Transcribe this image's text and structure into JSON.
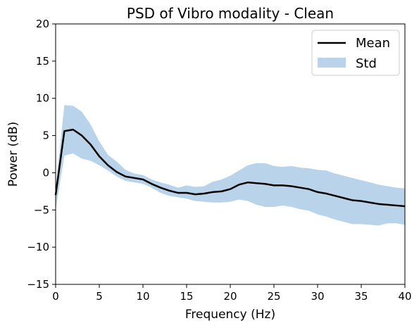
{
  "chart_data": {
    "type": "line",
    "title": "PSD of Vibro modality - Clean",
    "xlabel": "Frequency (Hz)",
    "ylabel": "Power (dB)",
    "xlim": [
      0,
      40
    ],
    "ylim": [
      -15,
      20
    ],
    "xticks": [
      0,
      5,
      10,
      15,
      20,
      25,
      30,
      35,
      40
    ],
    "yticks": [
      -15,
      -10,
      -5,
      0,
      5,
      10,
      15,
      20
    ],
    "grid": false,
    "legend": {
      "placement": "top-right",
      "entries": [
        "Mean",
        "Std"
      ]
    },
    "x": [
      0,
      1,
      2,
      3,
      4,
      5,
      6,
      7,
      8,
      9,
      10,
      11,
      12,
      13,
      14,
      15,
      16,
      17,
      18,
      19,
      20,
      21,
      22,
      23,
      24,
      25,
      26,
      27,
      28,
      29,
      30,
      31,
      32,
      33,
      34,
      35,
      36,
      37,
      38,
      39,
      40
    ],
    "series": [
      {
        "name": "Mean",
        "color": "#000000",
        "values": [
          -3.0,
          5.6,
          5.8,
          5.0,
          3.8,
          2.2,
          1.0,
          0.1,
          -0.5,
          -0.7,
          -0.9,
          -1.5,
          -2.0,
          -2.4,
          -2.7,
          -2.7,
          -2.9,
          -2.8,
          -2.6,
          -2.5,
          -2.2,
          -1.6,
          -1.3,
          -1.4,
          -1.5,
          -1.7,
          -1.7,
          -1.8,
          -2.0,
          -2.2,
          -2.6,
          -2.8,
          -3.1,
          -3.4,
          -3.7,
          -3.8,
          -4.0,
          -4.2,
          -4.3,
          -4.4,
          -4.5
        ]
      },
      {
        "name": "Std",
        "color": "#b9d4ea",
        "upper": [
          -2.0,
          9.1,
          9.0,
          8.2,
          6.5,
          4.2,
          2.4,
          1.5,
          0.4,
          -0.1,
          -0.3,
          -0.9,
          -1.3,
          -1.6,
          -2.0,
          -1.7,
          -1.9,
          -1.8,
          -1.2,
          -0.9,
          -0.4,
          0.3,
          1.0,
          1.3,
          1.3,
          0.9,
          0.8,
          0.9,
          0.7,
          0.6,
          0.4,
          0.3,
          -0.1,
          -0.4,
          -0.7,
          -1.0,
          -1.3,
          -1.6,
          -1.8,
          -2.0,
          -2.1
        ],
        "lower": [
          -5.0,
          2.3,
          2.6,
          1.9,
          1.6,
          1.0,
          0.3,
          -0.5,
          -1.1,
          -1.3,
          -1.5,
          -2.0,
          -2.7,
          -3.1,
          -3.3,
          -3.5,
          -3.8,
          -3.9,
          -4.0,
          -4.0,
          -3.9,
          -3.6,
          -3.8,
          -4.3,
          -4.6,
          -4.6,
          -4.4,
          -4.6,
          -4.9,
          -5.1,
          -5.6,
          -5.9,
          -6.3,
          -6.6,
          -6.9,
          -6.9,
          -7.0,
          -7.1,
          -6.8,
          -6.8,
          -7.0
        ]
      }
    ]
  }
}
